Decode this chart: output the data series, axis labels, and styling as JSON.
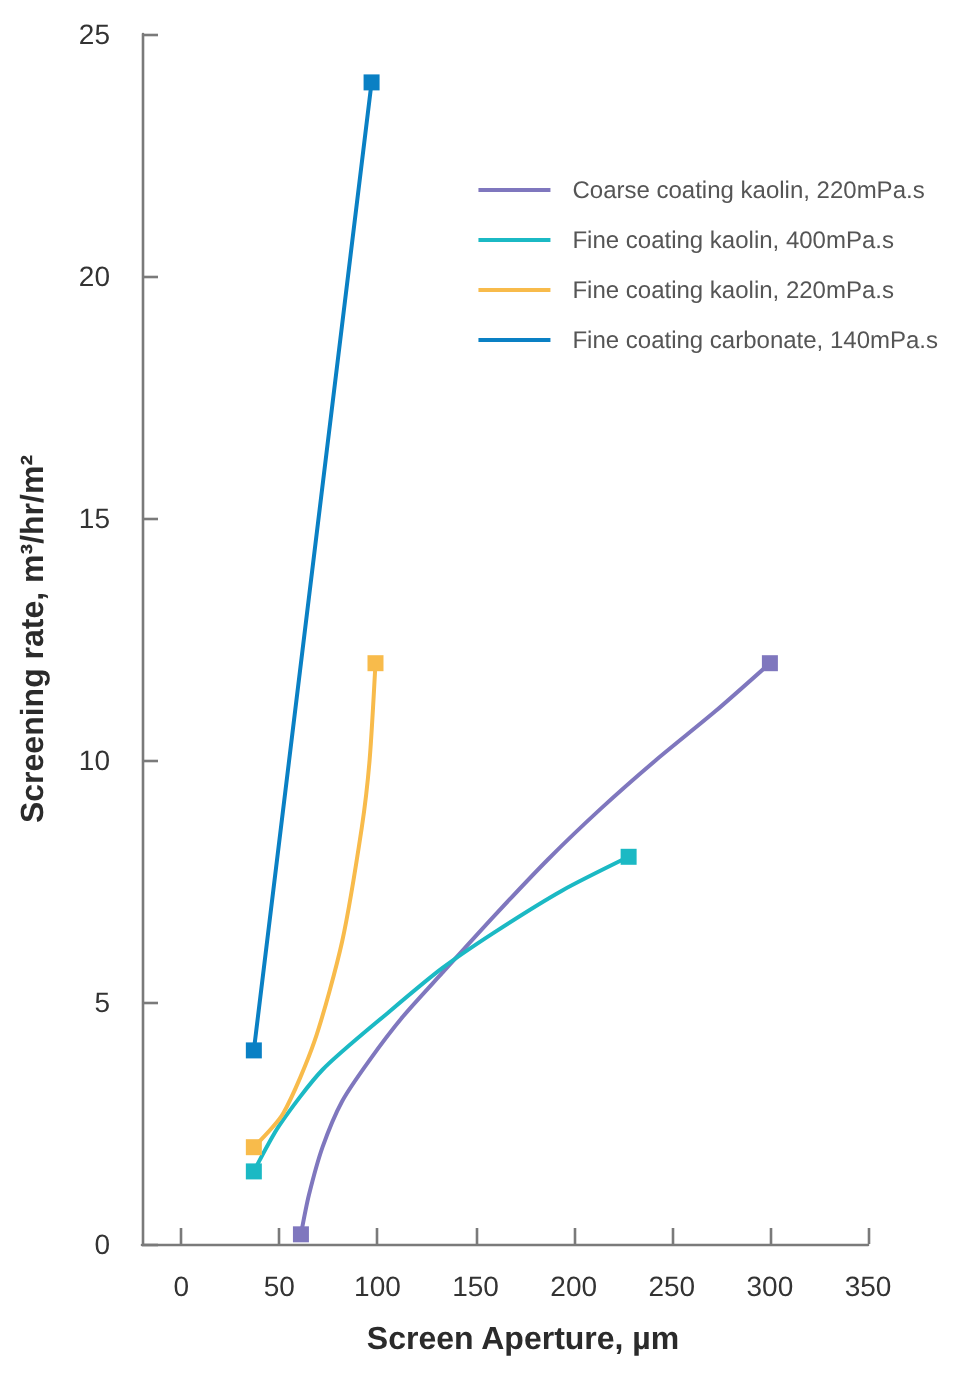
{
  "chart_data": {
    "type": "line",
    "xlabel": "Screen Aperture, µm",
    "ylabel": "Screening rate, m³/hr/m²",
    "xlim": [
      -20,
      350
    ],
    "xticks": [
      0,
      50,
      100,
      150,
      200,
      250,
      300,
      350
    ],
    "ylim": [
      0,
      25
    ],
    "yticks": [
      0,
      5,
      10,
      15,
      20,
      25
    ],
    "grid": false,
    "legend": "top right",
    "marker": "none",
    "line_style": "solid",
    "series": [
      {
        "name": "Coarse coating kaolin, 220mPa.s",
        "color": "#7f77be",
        "x": [
          61,
          65,
          72,
          82,
          96,
          113,
          133,
          160,
          187,
          214,
          242,
          272,
          300
        ],
        "values": [
          0.2,
          1.0,
          2.0,
          2.95,
          3.8,
          4.7,
          5.6,
          6.8,
          7.95,
          9.0,
          10.0,
          11.0,
          12
        ]
      },
      {
        "name": "Fine coating kaolin, 400mPa.s",
        "color": "#1bb9c4",
        "x": [
          37,
          50,
          72,
          106,
          133,
          160,
          194,
          228
        ],
        "values": [
          1.5,
          2.45,
          3.6,
          4.8,
          5.7,
          6.45,
          7.3,
          8
        ]
      },
      {
        "name": "Fine coating kaolin, 220mPa.s",
        "color": "#f8bb4b",
        "x": [
          37,
          52,
          68,
          82,
          92,
          96,
          99
        ],
        "values": [
          2,
          2.7,
          4.2,
          6.25,
          8.6,
          10,
          12
        ]
      },
      {
        "name": "Fine coating carbonate, 140mPa.s",
        "color": "#0a80c4",
        "x": [
          37,
          97
        ],
        "values": [
          4,
          24
        ]
      },
      {
        "type": "scatter",
        "marker": "square",
        "color": "#7f77be",
        "x": [
          61,
          300
        ],
        "values": [
          0.2,
          12
        ]
      },
      {
        "type": "scatter",
        "marker": "square",
        "color": "#1bb9c4",
        "x": [
          37,
          228
        ],
        "values": [
          1.5,
          8
        ]
      },
      {
        "type": "scatter",
        "marker": "square",
        "color": "#f8bb4b",
        "x": [
          37,
          99
        ],
        "values": [
          2,
          12
        ]
      },
      {
        "type": "scatter",
        "marker": "square",
        "color": "#0a80c4",
        "x": [
          37,
          97
        ],
        "values": [
          4,
          24
        ]
      }
    ]
  }
}
